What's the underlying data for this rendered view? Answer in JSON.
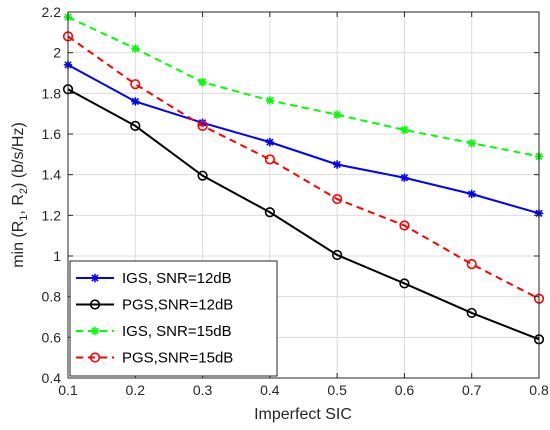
{
  "chart_data": {
    "type": "line",
    "xlabel": "Imperfect SIC",
    "ylabel": {
      "text": "min (R",
      "sub1": "1",
      "mid": ", R",
      "sub2": "2",
      "end": ") (b/s/Hz)"
    },
    "xlim": [
      0.1,
      0.8
    ],
    "ylim": [
      0.4,
      2.2
    ],
    "xticks": [
      0.1,
      0.2,
      0.3,
      0.4,
      0.5,
      0.6,
      0.7,
      0.8
    ],
    "xtick_labels": [
      "0.1",
      "0.2",
      "0.3",
      "0.4",
      "0.5",
      "0.6",
      "0.7",
      "0.8"
    ],
    "yticks": [
      0.4,
      0.6,
      0.8,
      1.0,
      1.2,
      1.4,
      1.6,
      1.8,
      2.0,
      2.2
    ],
    "ytick_labels": [
      "0.4",
      "0.6",
      "0.8",
      "1",
      "1.2",
      "1.4",
      "1.6",
      "1.8",
      "2",
      "2.2"
    ],
    "grid": true,
    "legend_position": "bottom-left",
    "x": [
      0.1,
      0.2,
      0.3,
      0.4,
      0.5,
      0.6,
      0.7,
      0.8
    ],
    "series": [
      {
        "name": "IGS, SNR=12dB",
        "values": [
          1.94,
          1.76,
          1.655,
          1.56,
          1.45,
          1.385,
          1.305,
          1.21
        ],
        "color": "#0000ff",
        "dash": "solid",
        "marker": "star"
      },
      {
        "name": "PGS,SNR=12dB",
        "values": [
          1.82,
          1.64,
          1.395,
          1.215,
          1.005,
          0.865,
          0.72,
          0.59
        ],
        "color": "#000000",
        "dash": "solid",
        "marker": "circle"
      },
      {
        "name": "IGS, SNR=15dB",
        "values": [
          2.175,
          2.02,
          1.855,
          1.765,
          1.695,
          1.62,
          1.555,
          1.49
        ],
        "color": "#00ff00",
        "dash": "dashed",
        "marker": "star"
      },
      {
        "name": "PGS,SNR=15dB",
        "values": [
          2.08,
          1.845,
          1.64,
          1.475,
          1.28,
          1.15,
          0.96,
          0.79
        ],
        "color": "#ff0000",
        "dash": "dashed",
        "marker": "circle"
      }
    ]
  }
}
